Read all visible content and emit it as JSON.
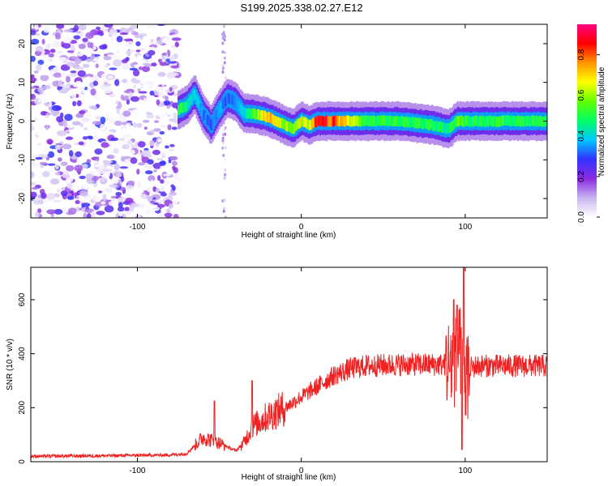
{
  "title": "S199.2025.338.02.27.E12",
  "chart_data": [
    {
      "type": "heatmap",
      "name": "spectrogram",
      "xlabel": "Height of straight line (km)",
      "ylabel": "Frequency (Hz)",
      "xlim": [
        -165,
        150
      ],
      "ylim": [
        -25,
        25
      ],
      "xticks": [
        -100,
        0,
        100
      ],
      "xtick_labels": [
        "-100",
        "0",
        "100"
      ],
      "yticks": [
        -20,
        -10,
        0,
        10,
        20
      ],
      "ytick_labels": [
        "-20",
        "-10",
        "0",
        "10",
        "20"
      ],
      "colorbar": {
        "label": "Normalized spectral amplitude",
        "range": [
          0,
          0.95
        ],
        "ticks": [
          0.0,
          0.2,
          0.4,
          0.6,
          0.8
        ],
        "tick_labels": [
          "0.0",
          "0.2",
          "0.4",
          "0.6",
          "0.8"
        ],
        "colors": [
          "#ffffff",
          "#c8b4f0",
          "#8a2be2",
          "#3232ff",
          "#00c8ff",
          "#00ff64",
          "#64ff00",
          "#ffff00",
          "#ff9600",
          "#ff0000",
          "#ff0080"
        ]
      },
      "noise_region_x": [
        -165,
        -75
      ],
      "ridge": {
        "x": [
          -75,
          -70,
          -65,
          -60,
          -55,
          -50,
          -45,
          -40,
          -35,
          -30,
          -20,
          -15,
          -10,
          -5,
          0,
          5,
          10,
          20,
          40,
          60,
          80,
          90,
          95,
          100,
          120,
          150
        ],
        "freq": [
          3,
          4,
          7,
          2,
          -1,
          3,
          6,
          5,
          2,
          2,
          1,
          0,
          -1,
          -2,
          0,
          -1,
          0,
          0,
          0,
          0,
          -1,
          -2,
          0,
          0,
          0,
          0
        ],
        "amplitude": [
          0.5,
          0.45,
          0.4,
          0.35,
          0.3,
          0.35,
          0.3,
          0.35,
          0.4,
          0.5,
          0.75,
          0.7,
          0.6,
          0.55,
          0.65,
          0.6,
          0.85,
          0.8,
          0.5,
          0.5,
          0.5,
          0.45,
          0.55,
          0.5,
          0.5,
          0.5
        ]
      }
    },
    {
      "type": "line",
      "name": "snr",
      "xlabel": "Height of straight line (km)",
      "ylabel": "SNR (10 * v/v)",
      "xlim": [
        -165,
        150
      ],
      "ylim": [
        0,
        720
      ],
      "xticks": [
        -100,
        0,
        100
      ],
      "xtick_labels": [
        "-100",
        "0",
        "100"
      ],
      "yticks": [
        0,
        200,
        400,
        600
      ],
      "ytick_labels": [
        "0",
        "200",
        "400",
        "600"
      ],
      "color": "#ee2222",
      "trend": {
        "x": [
          -165,
          -120,
          -80,
          -70,
          -60,
          -50,
          -40,
          -35,
          -30,
          -20,
          -10,
          0,
          10,
          20,
          30,
          40,
          60,
          80,
          90,
          95,
          98,
          100,
          103,
          110,
          130,
          150
        ],
        "y": [
          20,
          22,
          25,
          30,
          90,
          70,
          40,
          70,
          130,
          170,
          200,
          240,
          280,
          320,
          345,
          355,
          360,
          360,
          360,
          370,
          420,
          300,
          350,
          355,
          355,
          355
        ]
      },
      "peaks": [
        {
          "x": -53,
          "y": 225
        },
        {
          "x": -30,
          "y": 300
        },
        {
          "x": 93,
          "y": 600
        },
        {
          "x": 95,
          "y": 580
        },
        {
          "x": 99,
          "y": 720
        },
        {
          "x": 98,
          "y": 45
        }
      ]
    }
  ],
  "colors": {
    "background": "#ffffff",
    "axis": "#000000",
    "snr_line": "#ee2222"
  }
}
